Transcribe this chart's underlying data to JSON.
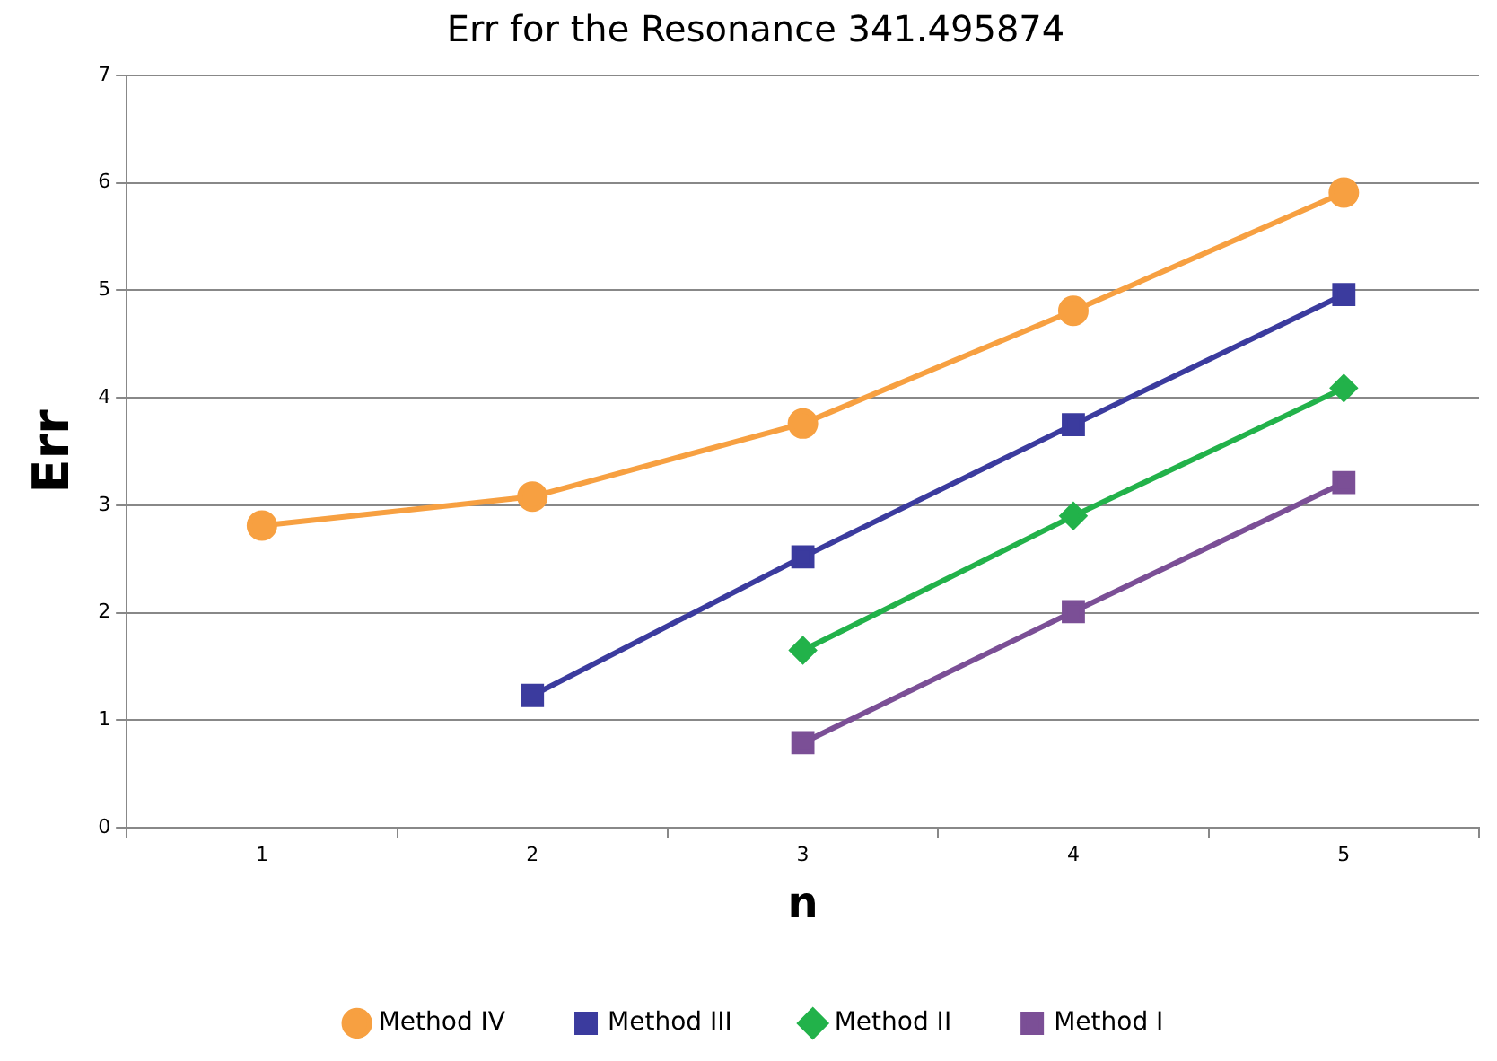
{
  "chart_data": {
    "type": "line",
    "title": "Err for the Resonance 341.495874",
    "xlabel": "n",
    "ylabel": "Err",
    "categories": [
      "1",
      "2",
      "3",
      "4",
      "5"
    ],
    "series": [
      {
        "name": "Method IV",
        "color": "#f7a041",
        "marker": "circle",
        "values": [
          2.81,
          3.08,
          3.76,
          4.81,
          5.91
        ]
      },
      {
        "name": "Method III",
        "color": "#3b3b9e",
        "marker": "square",
        "values": [
          null,
          1.23,
          2.52,
          3.75,
          4.96
        ]
      },
      {
        "name": "Method II",
        "color": "#22b24a",
        "marker": "diamond",
        "values": [
          null,
          null,
          1.65,
          2.9,
          4.09
        ]
      },
      {
        "name": "Method I",
        "color": "#7b4f96",
        "marker": "square",
        "values": [
          null,
          null,
          0.79,
          2.01,
          3.21
        ]
      }
    ],
    "ylim": [
      0,
      7
    ],
    "yticks": [
      0,
      1,
      2,
      3,
      4,
      5,
      6,
      7
    ],
    "grid": "y",
    "legend": "bottom"
  }
}
